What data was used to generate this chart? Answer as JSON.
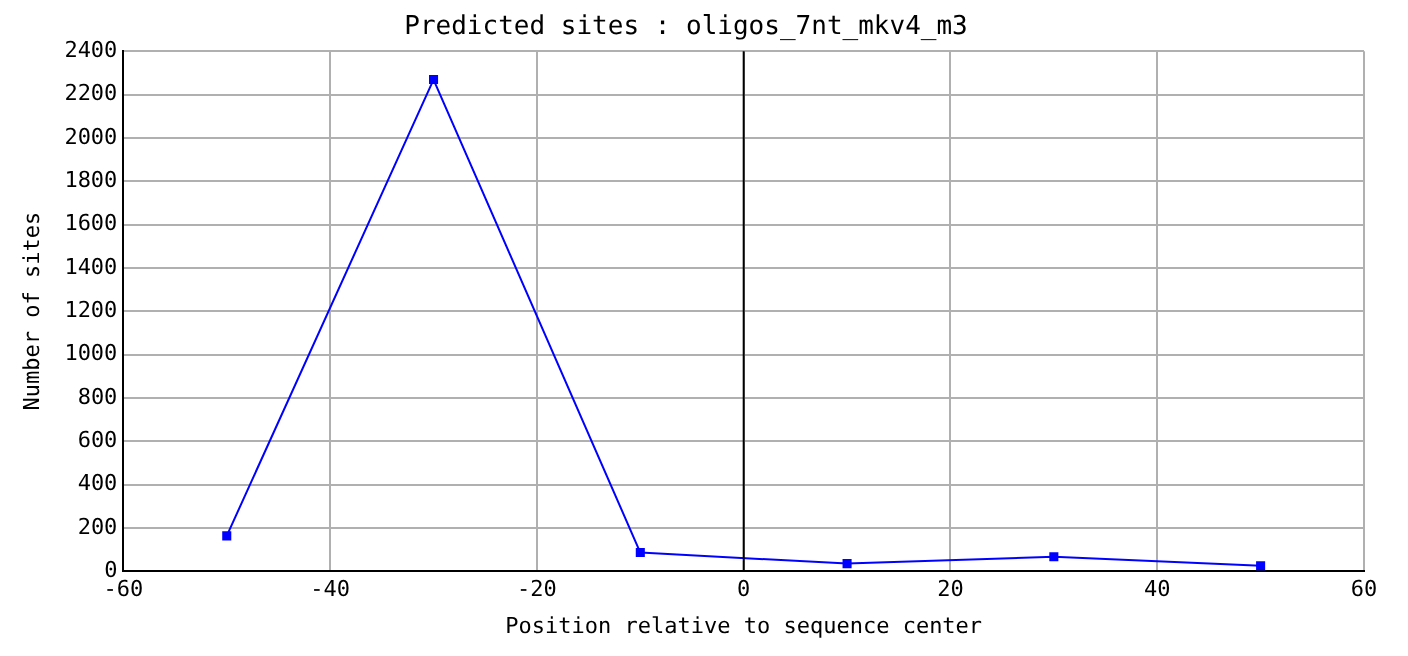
{
  "chart_data": {
    "type": "line",
    "title": "Predicted sites : oligos_7nt_mkv4_m3",
    "xlabel": "Position relative to sequence center",
    "ylabel": "Number of sites",
    "x": [
      -50,
      -30,
      -10,
      10,
      30,
      50
    ],
    "series": [
      {
        "color": "#0000ff",
        "values": [
          163,
          2269,
          86,
          35,
          67,
          25
        ]
      }
    ],
    "xlim": [
      -60,
      60
    ],
    "xticks": [
      -60,
      -40,
      -20,
      0,
      20,
      40,
      60
    ],
    "ylim": [
      0,
      2400
    ],
    "yticks": [
      0,
      200,
      400,
      600,
      800,
      1000,
      1200,
      1400,
      1600,
      1800,
      2000,
      2200,
      2400
    ],
    "ref_lines": [
      {
        "axis": "x",
        "value": 0,
        "color": "#000000"
      }
    ],
    "grid": true,
    "legend": false,
    "marker": "square",
    "line_style": "solid"
  }
}
